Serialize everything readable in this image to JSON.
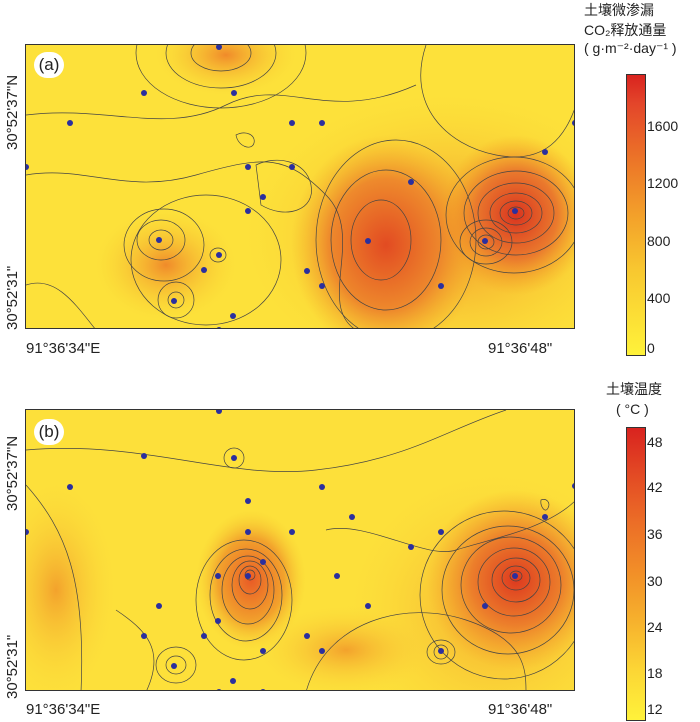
{
  "panel_a": {
    "label": "(a)",
    "legend_title_line1": "土壤微渗漏",
    "legend_title_line2": "CO₂释放通量",
    "legend_title_line3": "( g·m⁻²·day⁻¹ )",
    "ticks": [
      "1600",
      "1200",
      "800",
      "400",
      "0"
    ],
    "tick_values": [
      1600,
      1200,
      800,
      400,
      0
    ],
    "y_label_top": "30°52'37\"N",
    "y_label_bottom": "30°52'31\"",
    "x_label_left": "91°36'34\"E",
    "x_label_right": "91°36'48\""
  },
  "panel_b": {
    "label": "(b)",
    "legend_title_line1": "土壤温度",
    "legend_title_line2": "( °C )",
    "ticks": [
      "48",
      "42",
      "36",
      "30",
      "24",
      "18",
      "12"
    ],
    "tick_values": [
      48,
      42,
      36,
      30,
      24,
      18,
      12
    ],
    "y_label_top": "30°52'37\"N",
    "y_label_bottom": "30°52'31\"",
    "x_label_left": "91°36'34\"E",
    "x_label_right": "91°36'48\""
  },
  "colors": {
    "low": "#fff23a",
    "mid": "#f5a623",
    "high": "#e0231c",
    "point": "#2b2f9e"
  }
}
